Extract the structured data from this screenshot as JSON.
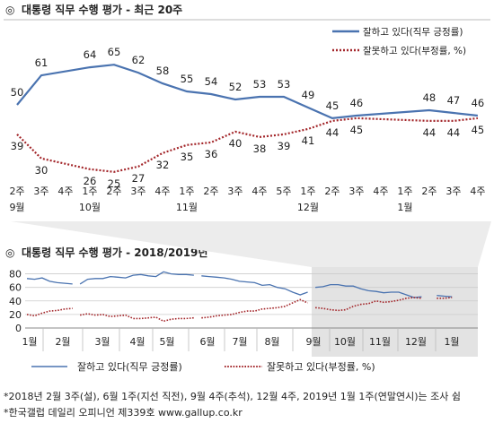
{
  "chart_data": [
    {
      "type": "line",
      "title": "대통령 직무 수행 평가 - 최근 20주",
      "title_symbol": "◎",
      "x_weeks": [
        "2주",
        "3주",
        "4주",
        "1주",
        "2주",
        "3주",
        "4주",
        "1주",
        "2주",
        "3주",
        "4주",
        "5주",
        "1주",
        "2주",
        "3주",
        "4주",
        "1주",
        "2주",
        "3주",
        "4주"
      ],
      "x_months": [
        {
          "index": 0,
          "label": "9월"
        },
        {
          "index": 3,
          "label": "10월"
        },
        {
          "index": 7,
          "label": "11월"
        },
        {
          "index": 12,
          "label": "12월"
        },
        {
          "index": 16,
          "label": "1월"
        }
      ],
      "series": [
        {
          "name": "잘하고 있다(직무 긍정률)",
          "color": "#4a73b0",
          "style": "solid",
          "values": [
            50,
            61,
            null,
            64,
            65,
            62,
            58,
            55,
            54,
            52,
            53,
            53,
            49,
            45,
            46,
            null,
            null,
            48,
            47,
            46
          ],
          "labels": [
            "50",
            "61",
            "",
            "64",
            "65",
            "62",
            "58",
            "55",
            "54",
            "52",
            "53",
            "53",
            "49",
            "45",
            "46",
            "",
            "",
            "48",
            "47",
            "46"
          ]
        },
        {
          "name": "잘못하고 있다(부정률, %)",
          "color": "#a3262a",
          "style": "dotted",
          "values": [
            39,
            30,
            null,
            26,
            25,
            27,
            32,
            35,
            36,
            40,
            38,
            39,
            41,
            44,
            45,
            null,
            null,
            44,
            44,
            45
          ],
          "labels": [
            "39",
            "30",
            "",
            "26",
            "25",
            "27",
            "32",
            "35",
            "36",
            "40",
            "38",
            "39",
            "41",
            "44",
            "45",
            "",
            "",
            "44",
            "44",
            "45"
          ]
        }
      ],
      "legend_placement": "top-right",
      "ylim": [
        20,
        70
      ]
    },
    {
      "type": "line",
      "title": "대통령 직무 수행 평가 - 2018/2019년",
      "title_symbol": "◎",
      "y_ticks": [
        "0",
        "20",
        "40",
        "60",
        "80"
      ],
      "ylim": [
        0,
        90
      ],
      "x_months": [
        "1월",
        "2월",
        "3월",
        "4월",
        "5월",
        "6월",
        "7월",
        "8월",
        "9월",
        "10월",
        "11월",
        "12월",
        "1월"
      ],
      "shaded_region": "recent 20 weeks (9월 - 1월)",
      "series": [
        {
          "name": "잘하고 있다(직무 긍정률)",
          "color": "#4a73b0",
          "style": "solid",
          "segments": [
            [
              [
                1,
                73
              ],
              [
                2,
                72
              ],
              [
                3,
                74
              ],
              [
                4,
                69
              ],
              [
                5,
                67
              ],
              [
                6,
                66
              ],
              [
                7,
                65
              ]
            ],
            [
              [
                8,
                65
              ],
              [
                9,
                72
              ],
              [
                10,
                73
              ],
              [
                11,
                73
              ],
              [
                12,
                76
              ],
              [
                13,
                75
              ],
              [
                14,
                74
              ],
              [
                15,
                78
              ],
              [
                16,
                79
              ],
              [
                17,
                77
              ],
              [
                18,
                76
              ],
              [
                19,
                83
              ],
              [
                20,
                80
              ],
              [
                21,
                79
              ],
              [
                22,
                79
              ],
              [
                23,
                78
              ]
            ],
            [
              [
                24,
                77
              ],
              [
                25,
                76
              ],
              [
                26,
                75
              ],
              [
                27,
                74
              ],
              [
                28,
                72
              ],
              [
                29,
                69
              ],
              [
                30,
                68
              ],
              [
                31,
                67
              ],
              [
                32,
                63
              ],
              [
                33,
                64
              ],
              [
                34,
                60
              ],
              [
                35,
                58
              ],
              [
                36,
                53
              ],
              [
                37,
                49
              ],
              [
                38,
                53
              ]
            ],
            [
              [
                39,
                60
              ],
              [
                40,
                61
              ],
              [
                41,
                64
              ],
              [
                42,
                64
              ],
              [
                43,
                62
              ],
              [
                44,
                62
              ],
              [
                45,
                58
              ],
              [
                46,
                55
              ],
              [
                47,
                54
              ],
              [
                48,
                52
              ],
              [
                49,
                53
              ],
              [
                50,
                53
              ],
              [
                51,
                49
              ],
              [
                52,
                45
              ],
              [
                53,
                46
              ]
            ],
            [
              [
                55,
                48
              ],
              [
                56,
                47
              ],
              [
                57,
                46
              ]
            ]
          ]
        },
        {
          "name": "잘못하고 있다(부정률, %)",
          "color": "#a3262a",
          "style": "dotted",
          "segments": [
            [
              [
                1,
                20
              ],
              [
                2,
                18
              ],
              [
                3,
                22
              ],
              [
                4,
                25
              ],
              [
                5,
                26
              ],
              [
                6,
                28
              ],
              [
                7,
                29
              ]
            ],
            [
              [
                8,
                19
              ],
              [
                9,
                21
              ],
              [
                10,
                19
              ],
              [
                11,
                20
              ],
              [
                12,
                17
              ],
              [
                13,
                18
              ],
              [
                14,
                19
              ],
              [
                15,
                14
              ],
              [
                16,
                14
              ],
              [
                17,
                15
              ],
              [
                18,
                16
              ],
              [
                19,
                10
              ],
              [
                20,
                13
              ],
              [
                21,
                14
              ],
              [
                22,
                14
              ],
              [
                23,
                15
              ]
            ],
            [
              [
                24,
                15
              ],
              [
                25,
                16
              ],
              [
                26,
                18
              ],
              [
                27,
                19
              ],
              [
                28,
                20
              ],
              [
                29,
                23
              ],
              [
                30,
                25
              ],
              [
                31,
                25
              ],
              [
                32,
                28
              ],
              [
                33,
                29
              ],
              [
                34,
                30
              ],
              [
                35,
                32
              ],
              [
                36,
                37
              ],
              [
                37,
                42
              ],
              [
                38,
                37
              ]
            ],
            [
              [
                39,
                30
              ],
              [
                40,
                29
              ],
              [
                41,
                27
              ],
              [
                42,
                26
              ],
              [
                43,
                27
              ],
              [
                44,
                32
              ],
              [
                45,
                35
              ],
              [
                46,
                36
              ],
              [
                47,
                40
              ],
              [
                48,
                38
              ],
              [
                49,
                39
              ],
              [
                50,
                41
              ],
              [
                51,
                44
              ],
              [
                52,
                45
              ],
              [
                53,
                44
              ]
            ],
            [
              [
                55,
                44
              ],
              [
                56,
                44
              ],
              [
                57,
                45
              ]
            ]
          ]
        }
      ]
    }
  ],
  "legend2": {
    "positive": "잘하고 있다(직무 긍정률)",
    "negative": "잘못하고 있다(부정률, %)"
  },
  "footnotes": {
    "line1": "*2018년 2월 3주(설), 6월 1주(지선 직전), 9월 4주(추석), 12월 4주, 2019년 1월 1주(연말연시)는 조사 쉼",
    "line2": "*한국갤럽 데일리 오피니언 제339호 www.gallup.co.kr"
  }
}
